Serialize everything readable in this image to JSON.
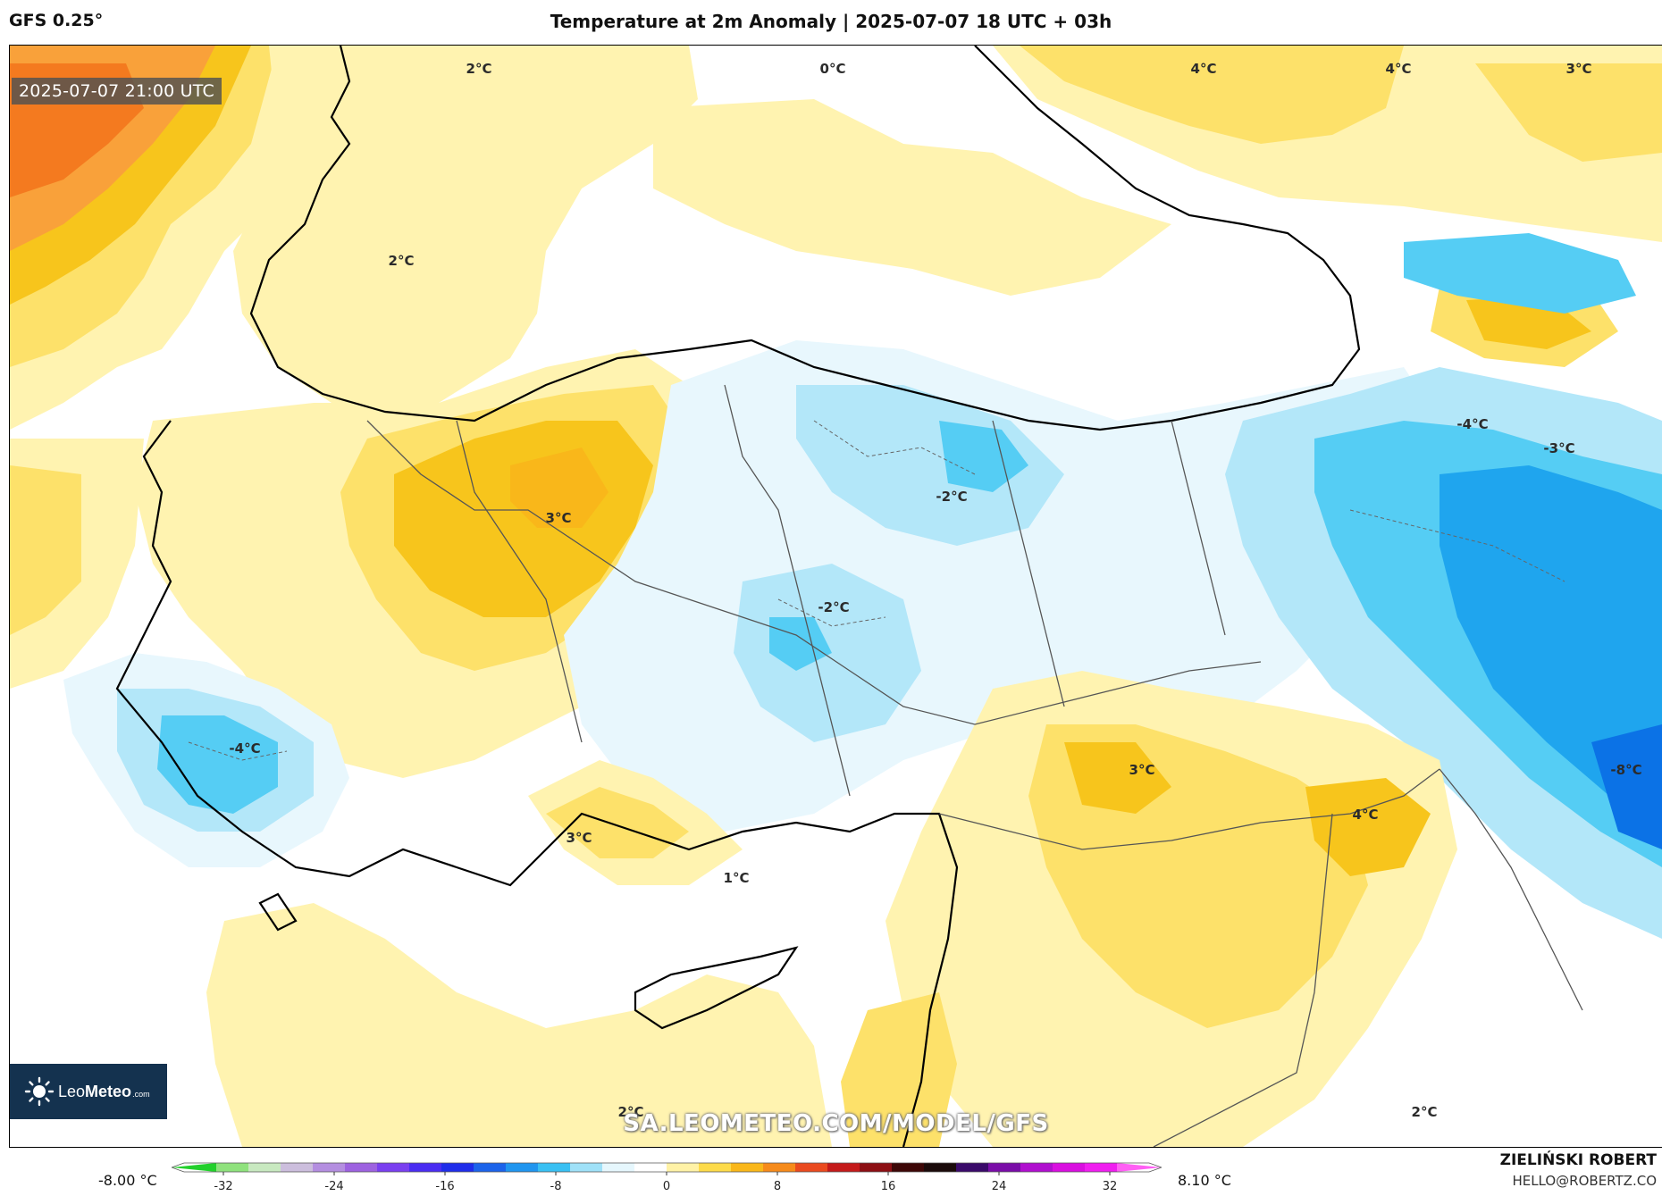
{
  "header": {
    "model": "GFS 0.25°",
    "title": "Temperature at 2m Anomaly | 2025-07-07 18 UTC + 03h"
  },
  "map": {
    "valid_time": "2025-07-07 21:00 UTC",
    "watermark": "SA.LEOMETEO.COM/MODEL/GFS",
    "labels": [
      "2°C",
      "0°C",
      "4°C",
      "4°C",
      "3°C",
      "2°C",
      "-4°C",
      "-3°C",
      "-2°C",
      "3°C",
      "-2°C",
      "-4°C",
      "3°C",
      "-8°C",
      "3°C",
      "4°C",
      "1°C",
      "2°C",
      "2°C"
    ],
    "palette": {
      "pale_yellow": "#fff3b0",
      "yellow": "#fde16a",
      "gold": "#f7c51c",
      "orange": "#f9a13a",
      "deep_orange": "#f47a1f",
      "pale_blue": "#e8f7fd",
      "light_blue": "#b3e7f9",
      "sky_blue": "#55cdf4",
      "blue": "#1fa5ee",
      "deep_blue": "#0b72e6"
    }
  },
  "logo": {
    "brand_prefix": "Leo",
    "brand_bold": "Meteo",
    "suffix": ".com"
  },
  "legend": {
    "min_label": "-8.00 °C",
    "max_label": "8.10 °C",
    "ticks": [
      "-32",
      "-24",
      "-16",
      "-8",
      "0",
      "8",
      "16",
      "24",
      "32"
    ],
    "colors": [
      "#22d02c",
      "#8fe27d",
      "#c8e9c0",
      "#ccbedd",
      "#b48ee0",
      "#9d62e0",
      "#7a3ff0",
      "#4a2cf2",
      "#1f2dea",
      "#1c63ea",
      "#2095ef",
      "#39c0f3",
      "#9fe1f8",
      "#e6f7fd",
      "#ffffff",
      "#fff2a6",
      "#fddb4a",
      "#f9b71a",
      "#f68b1b",
      "#ea4a1f",
      "#c41a1a",
      "#8d0f14",
      "#3d0707",
      "#1a0a0a",
      "#3a0a6a",
      "#7a0da8",
      "#b00fcf",
      "#d90fe0",
      "#f01ef0",
      "#ff5ff4"
    ]
  },
  "credit": {
    "name": "ZIELIŃSKI ROBERT",
    "email": "HELLO@ROBERTZ.CO"
  }
}
